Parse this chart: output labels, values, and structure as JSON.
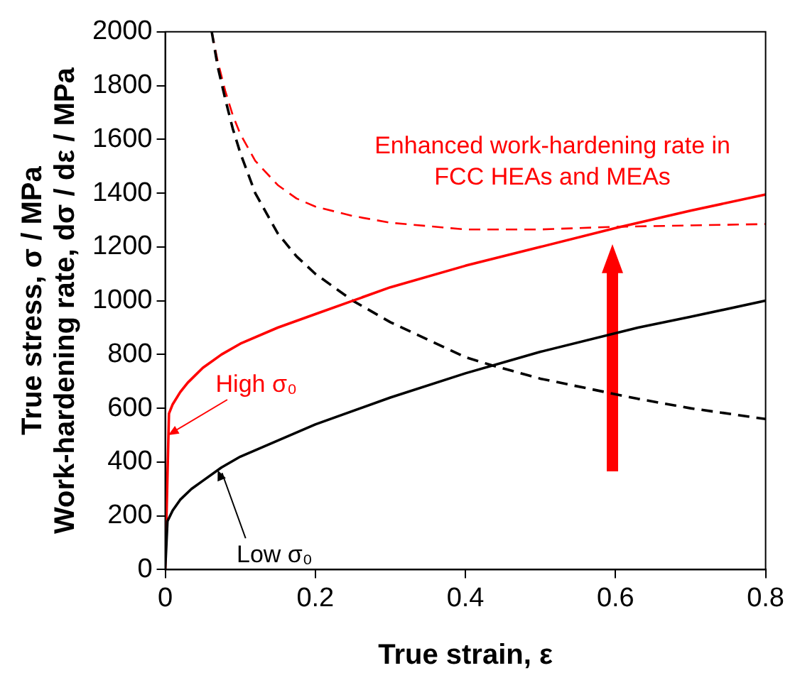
{
  "chart_data": {
    "type": "line",
    "xlabel": "True strain, ε",
    "ylabel": "True stress, σ / MPa\nWork-hardening rate, dσ / dε / MPa",
    "xlim": [
      0,
      0.8
    ],
    "xticks": [
      0,
      0.2,
      0.4,
      0.6,
      0.8
    ],
    "ylim": [
      0,
      2000
    ],
    "yticks": [
      0,
      200,
      400,
      600,
      800,
      1000,
      1200,
      1400,
      1600,
      1800,
      2000
    ],
    "grid": false,
    "legend": false,
    "marker": "none",
    "series": [
      {
        "color": "#000000",
        "line_style": "solid",
        "x": [
          0,
          0.003,
          0.01,
          0.02,
          0.035,
          0.05,
          0.075,
          0.1,
          0.15,
          0.2,
          0.3,
          0.4,
          0.5,
          0.63,
          0.7,
          0.8
        ],
        "values": [
          0,
          180,
          220,
          260,
          300,
          330,
          380,
          420,
          480,
          540,
          640,
          730,
          810,
          900,
          940,
          1000
        ]
      },
      {
        "color": "#ff0000",
        "line_style": "solid",
        "x": [
          0,
          0.005,
          0.01,
          0.02,
          0.03,
          0.05,
          0.075,
          0.1,
          0.15,
          0.2,
          0.25,
          0.3,
          0.4,
          0.5,
          0.6,
          0.7,
          0.8
        ],
        "values": [
          0,
          580,
          615,
          660,
          695,
          750,
          800,
          840,
          900,
          950,
          1000,
          1050,
          1130,
          1200,
          1270,
          1335,
          1395
        ]
      },
      {
        "color": "#000000",
        "line_style": "dashed",
        "x": [
          0.062,
          0.07,
          0.08,
          0.09,
          0.1,
          0.12,
          0.15,
          0.175,
          0.2,
          0.25,
          0.3,
          0.4,
          0.435,
          0.5,
          0.63,
          0.7,
          0.8
        ],
        "values": [
          2000,
          1870,
          1750,
          1640,
          1550,
          1400,
          1250,
          1165,
          1100,
          1000,
          920,
          790,
          760,
          710,
          635,
          600,
          560
        ]
      },
      {
        "color": "#ff0000",
        "line_style": "dashed",
        "x": [
          0.062,
          0.07,
          0.08,
          0.09,
          0.1,
          0.12,
          0.15,
          0.175,
          0.2,
          0.25,
          0.3,
          0.4,
          0.5,
          0.6,
          0.7,
          0.8
        ],
        "values": [
          2000,
          1890,
          1780,
          1690,
          1620,
          1520,
          1430,
          1380,
          1350,
          1315,
          1290,
          1265,
          1265,
          1275,
          1280,
          1285
        ]
      }
    ],
    "annotations": [
      {
        "text": "Enhanced work-hardening rate in\nFCC HEAs and MEAs",
        "x": 0.58,
        "y": 1255
      },
      {
        "text": "High σ₀",
        "x": 0.004,
        "y": 500
      },
      {
        "text": "Low σ₀",
        "x": 0.07,
        "y": 370
      }
    ]
  }
}
